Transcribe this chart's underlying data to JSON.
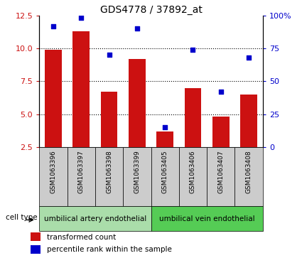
{
  "title": "GDS4778 / 37892_at",
  "samples": [
    "GSM1063396",
    "GSM1063397",
    "GSM1063398",
    "GSM1063399",
    "GSM1063405",
    "GSM1063406",
    "GSM1063407",
    "GSM1063408"
  ],
  "bar_values": [
    9.9,
    11.3,
    6.7,
    9.2,
    3.7,
    7.0,
    4.8,
    6.5
  ],
  "scatter_values": [
    92,
    98,
    70,
    90,
    15,
    74,
    42,
    68
  ],
  "ylim_left": [
    2.5,
    12.5
  ],
  "ylim_right": [
    0,
    100
  ],
  "yticks_left": [
    2.5,
    5.0,
    7.5,
    10.0,
    12.5
  ],
  "yticks_right": [
    0,
    25,
    50,
    75,
    100
  ],
  "bar_color": "#cc1111",
  "scatter_color": "#0000cc",
  "cell_types": [
    {
      "label": "umbilical artery endothelial",
      "samples": [
        0,
        1,
        2,
        3
      ],
      "color": "#aaddaa"
    },
    {
      "label": "umbilical vein endothelial",
      "samples": [
        4,
        5,
        6,
        7
      ],
      "color": "#55cc55"
    }
  ],
  "cell_type_label": "cell type",
  "legend_bar_label": "transformed count",
  "legend_scatter_label": "percentile rank within the sample",
  "grid_yticks": [
    5.0,
    7.5,
    10.0
  ],
  "tick_area_color": "#cccccc",
  "fig_width": 4.25,
  "fig_height": 3.63,
  "dpi": 100
}
